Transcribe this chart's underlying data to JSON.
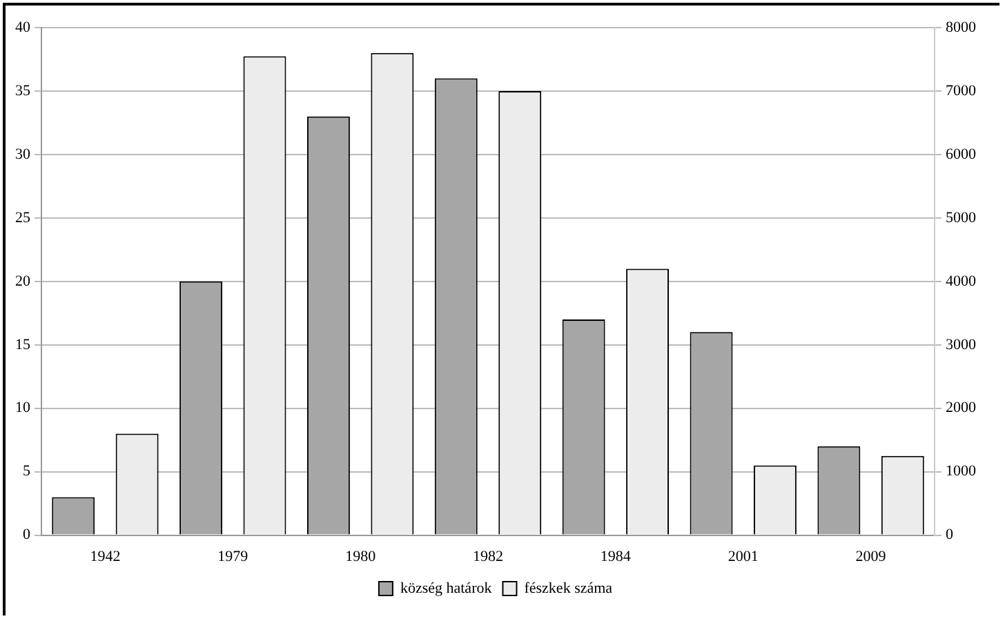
{
  "chart_data": {
    "type": "bar",
    "categories": [
      "1942",
      "1979",
      "1980",
      "1982",
      "1984",
      "2001",
      "2009"
    ],
    "series": [
      {
        "name": "község határok",
        "color": "#a6a6a6",
        "values": [
          3,
          20,
          33,
          36,
          17,
          16,
          7
        ]
      },
      {
        "name": "fészkek száma",
        "color": "#ececec",
        "axis": "y2",
        "values": [
          1600,
          7550,
          7600,
          7000,
          4200,
          1100,
          1250
        ]
      }
    ],
    "ylim": [
      0,
      40
    ],
    "yticks": [
      0,
      5,
      10,
      15,
      20,
      25,
      30,
      35,
      40
    ],
    "y2lim": [
      0,
      8000
    ],
    "y2ticks": [
      0,
      1000,
      2000,
      3000,
      4000,
      5000,
      6000,
      7000,
      8000
    ],
    "grid": "y",
    "legend": "bottom"
  }
}
